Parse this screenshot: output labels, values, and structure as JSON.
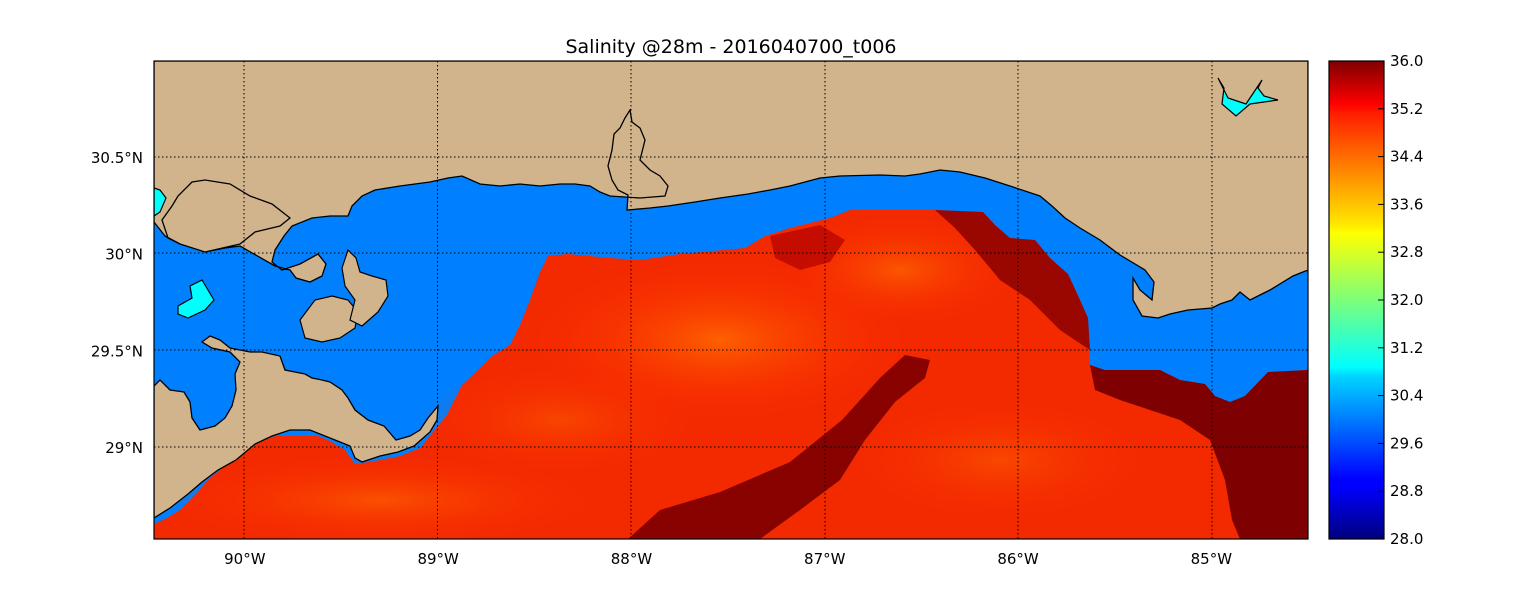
{
  "title": "Salinity @28m - 2016040700_t006",
  "colors": {
    "land": "#d2b48c",
    "low_salinity_water": "#0080ff",
    "fresh_lake": "#00ffff",
    "coastline": "#000000"
  },
  "map_extent": {
    "lon_min": -90.47,
    "lon_max": -84.5,
    "lat_min": 28.53,
    "lat_max": 31.0
  },
  "lon_ticks": [
    {
      "value": -90,
      "label": "90°W"
    },
    {
      "value": -89,
      "label": "89°W"
    },
    {
      "value": -88,
      "label": "88°W"
    },
    {
      "value": -87,
      "label": "87°W"
    },
    {
      "value": -86,
      "label": "86°W"
    },
    {
      "value": -85,
      "label": "85°W"
    }
  ],
  "lat_ticks": [
    {
      "value": 30.5,
      "label": "30.5°N"
    },
    {
      "value": 30.0,
      "label": "30°N"
    },
    {
      "value": 29.5,
      "label": "29.5°N"
    },
    {
      "value": 29.0,
      "label": "29°N"
    }
  ],
  "colorbar": {
    "colormap": "jet",
    "vmin": 28.0,
    "vmax": 36.0,
    "tick_labels": [
      "36.0",
      "35.2",
      "34.4",
      "33.6",
      "32.8",
      "32.0",
      "31.2",
      "30.4",
      "29.6",
      "28.8",
      "28.0"
    ]
  }
}
